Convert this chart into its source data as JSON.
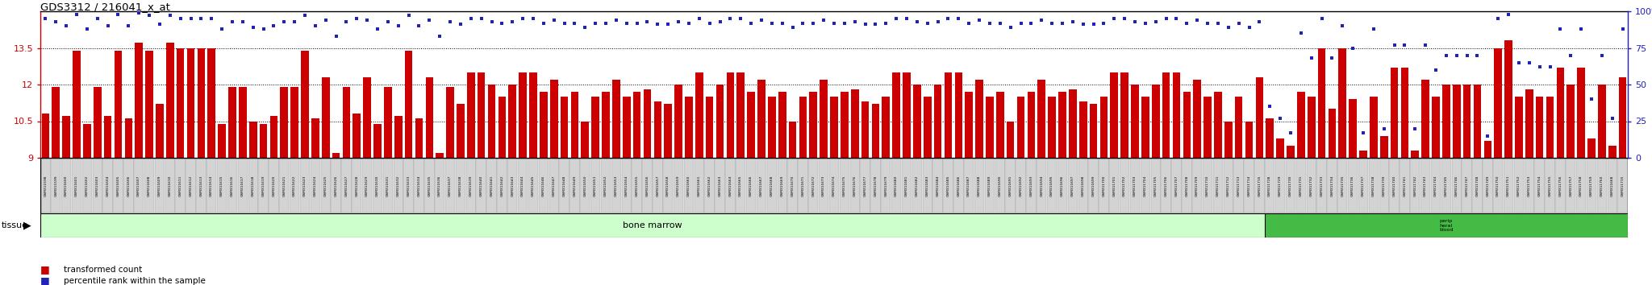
{
  "title": "GDS3312 / 216041_x_at",
  "samples_bm": [
    "GSM311598",
    "GSM311599",
    "GSM311600",
    "GSM311601",
    "GSM311602",
    "GSM311603",
    "GSM311604",
    "GSM311605",
    "GSM311606",
    "GSM311607",
    "GSM311608",
    "GSM311609",
    "GSM311610",
    "GSM311611",
    "GSM311612",
    "GSM311613",
    "GSM311614",
    "GSM311615",
    "GSM311616",
    "GSM311617",
    "GSM311618",
    "GSM311619",
    "GSM311620",
    "GSM311621",
    "GSM311622",
    "GSM311623",
    "GSM311624",
    "GSM311625",
    "GSM311626",
    "GSM311627",
    "GSM311628",
    "GSM311629",
    "GSM311630",
    "GSM311631",
    "GSM311632",
    "GSM311633",
    "GSM311634",
    "GSM311635",
    "GSM311636",
    "GSM311637",
    "GSM311638",
    "GSM311639",
    "GSM311640",
    "GSM311641",
    "GSM311642",
    "GSM311643",
    "GSM311644",
    "GSM311645",
    "GSM311646",
    "GSM311647",
    "GSM311648",
    "GSM311649",
    "GSM311650",
    "GSM311651",
    "GSM311652",
    "GSM311653",
    "GSM311654",
    "GSM311655",
    "GSM311656",
    "GSM311657",
    "GSM311658",
    "GSM311659",
    "GSM311660",
    "GSM311661",
    "GSM311662",
    "GSM311663",
    "GSM311664",
    "GSM311665",
    "GSM311666",
    "GSM311667",
    "GSM311668",
    "GSM311669",
    "GSM311670",
    "GSM311671",
    "GSM311672",
    "GSM311673",
    "GSM311674",
    "GSM311675",
    "GSM311676",
    "GSM311677",
    "GSM311678",
    "GSM311679",
    "GSM311680",
    "GSM311681",
    "GSM311682",
    "GSM311683",
    "GSM311684",
    "GSM311685",
    "GSM311686",
    "GSM311687",
    "GSM311688",
    "GSM311689",
    "GSM311690",
    "GSM311691",
    "GSM311692",
    "GSM311693",
    "GSM311694",
    "GSM311695",
    "GSM311696",
    "GSM311697",
    "GSM311698",
    "GSM311699",
    "GSM311700",
    "GSM311701",
    "GSM311702",
    "GSM311703",
    "GSM311704",
    "GSM311705",
    "GSM311706",
    "GSM311707",
    "GSM311708",
    "GSM311709",
    "GSM311710",
    "GSM311711",
    "GSM311712",
    "GSM311713",
    "GSM311714",
    "GSM311715"
  ],
  "samples_pb": [
    "GSM311728",
    "GSM311729",
    "GSM311730",
    "GSM311731",
    "GSM311732",
    "GSM311733",
    "GSM311734",
    "GSM311735",
    "GSM311736",
    "GSM311737",
    "GSM311738",
    "GSM311739",
    "GSM311740",
    "GSM311741",
    "GSM311742",
    "GSM311743",
    "GSM311744",
    "GSM311745",
    "GSM311746",
    "GSM311747",
    "GSM311748",
    "GSM311749",
    "GSM311750",
    "GSM311751",
    "GSM311752",
    "GSM311753",
    "GSM311754",
    "GSM311755",
    "GSM311756",
    "GSM311757",
    "GSM311758",
    "GSM311759",
    "GSM311760",
    "GSM311668",
    "GSM311715"
  ],
  "bm_counts": [
    10.8,
    11.9,
    10.7,
    13.4,
    10.4,
    11.9,
    10.7,
    13.4,
    10.6,
    13.7,
    13.4,
    11.2,
    13.7,
    13.5,
    13.5,
    13.5,
    13.5,
    10.4,
    11.9,
    11.9,
    10.5,
    10.4,
    10.7,
    11.9,
    11.9,
    13.4,
    10.6,
    12.3,
    9.2,
    11.9,
    10.8,
    12.3,
    10.4,
    11.9,
    10.7,
    13.4,
    10.6,
    12.3,
    9.2,
    11.9,
    11.2,
    12.5,
    12.5,
    12.0,
    11.5,
    12.0,
    12.5,
    12.5,
    11.7,
    12.2,
    11.5,
    11.7,
    10.5,
    11.5,
    11.7,
    12.2,
    11.5,
    11.7,
    11.8,
    11.3,
    11.2,
    12.0,
    11.5,
    12.5,
    11.5,
    12.0,
    12.5,
    12.5,
    11.7,
    12.2,
    11.5,
    11.7,
    10.5,
    11.5,
    11.7,
    12.2,
    11.5,
    11.7,
    11.8,
    11.3,
    11.2,
    11.5,
    12.5,
    12.5,
    12.0,
    11.5,
    12.0,
    12.5,
    12.5,
    11.7,
    12.2,
    11.5,
    11.7,
    10.5,
    11.5,
    11.7,
    12.2,
    11.5,
    11.7,
    11.8,
    11.3,
    11.2,
    11.5,
    12.5,
    12.5,
    12.0,
    11.5,
    12.0,
    12.5,
    12.5,
    11.7,
    12.2,
    11.5,
    11.7,
    10.5,
    11.5,
    10.5,
    12.3
  ],
  "pb_counts": [
    10.6,
    9.8,
    9.5,
    11.7,
    11.5,
    13.5,
    11.0,
    13.5,
    11.4,
    9.3,
    11.5,
    9.9,
    12.7,
    12.7,
    9.3,
    12.2,
    11.5,
    12.0,
    12.0,
    12.0,
    12.0,
    9.7,
    13.5,
    13.8,
    11.5,
    11.8,
    11.5,
    11.5,
    12.7,
    12.0,
    12.7,
    9.8,
    12.0,
    9.5,
    12.3
  ],
  "bm_pct": [
    95,
    93,
    90,
    98,
    88,
    95,
    90,
    98,
    90,
    99,
    97,
    91,
    97,
    95,
    95,
    95,
    95,
    88,
    93,
    93,
    89,
    88,
    90,
    93,
    93,
    97,
    90,
    94,
    83,
    93,
    95,
    94,
    88,
    93,
    90,
    97,
    90,
    94,
    83,
    93,
    91,
    95,
    95,
    93,
    92,
    93,
    95,
    95,
    92,
    94,
    92,
    92,
    89,
    92,
    92,
    94,
    92,
    92,
    93,
    91,
    91,
    93,
    92,
    95,
    92,
    93,
    95,
    95,
    92,
    94,
    92,
    92,
    89,
    92,
    92,
    94,
    92,
    92,
    93,
    91,
    91,
    92,
    95,
    95,
    93,
    92,
    93,
    95,
    95,
    92,
    94,
    92,
    92,
    89,
    92,
    92,
    94,
    92,
    92,
    93,
    91,
    91,
    92,
    95,
    95,
    93,
    92,
    93,
    95,
    95,
    92,
    94,
    92,
    92,
    89,
    92,
    89,
    93
  ],
  "pb_pct": [
    35,
    27,
    17,
    85,
    68,
    95,
    68,
    90,
    75,
    17,
    88,
    20,
    77,
    77,
    20,
    77,
    60,
    70,
    70,
    70,
    70,
    15,
    95,
    98,
    65,
    65,
    62,
    62,
    88,
    70,
    88,
    40,
    70,
    27,
    88
  ],
  "ylim_left": [
    9.0,
    15.0
  ],
  "ylim_right": [
    0,
    100
  ],
  "yticks_left": [
    9.0,
    10.5,
    12.0,
    13.5
  ],
  "ytick_labels_left": [
    "9",
    "10.5",
    "12",
    "13.5"
  ],
  "yticks_right": [
    0,
    25,
    50,
    75,
    100
  ],
  "ytick_labels_right": [
    "0",
    "25",
    "50",
    "75",
    "100%"
  ],
  "bar_color": "#cc0000",
  "dot_color": "#2222bb",
  "bg_color": "#ffffff",
  "left_axis_color": "#cc0000",
  "right_axis_color": "#2222bb",
  "tissue_bm_color": "#ccffcc",
  "tissue_pb_color": "#44bb44",
  "bm_label": "bone marrow",
  "pb_label": "perip\nheral\nblood",
  "tissue_text": "tissue",
  "legend1_color": "#cc0000",
  "legend2_color": "#2222bb",
  "legend1": "transformed count",
  "legend2": "percentile rank within the sample"
}
